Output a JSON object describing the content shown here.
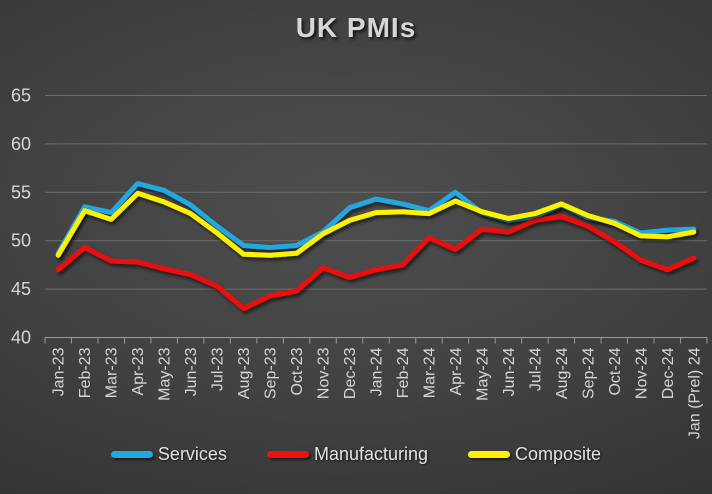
{
  "title": "UK PMIs",
  "axes": {
    "y_min": 40,
    "y_max": 65,
    "y_step": 5,
    "y_tick_labels": [
      "40",
      "45",
      "50",
      "55",
      "60",
      "65"
    ]
  },
  "colors": {
    "services": "#23A7DF",
    "manufacturing": "#EE1111",
    "composite": "#FFF200",
    "gridline": "#6C6C6C",
    "axis": "#9B9B9B",
    "label_text": "#D6D6D6"
  },
  "chart_data": {
    "type": "line",
    "title": "UK PMIs",
    "xlabel": "",
    "ylabel": "",
    "ylim": [
      40,
      65
    ],
    "ytick_step": 5,
    "grid": true,
    "legend_position": "bottom",
    "categories": [
      "Jan-23",
      "Feb-23",
      "Mar-23",
      "Apr-23",
      "May-23",
      "Jun-23",
      "Jul-23",
      "Aug-23",
      "Sep-23",
      "Oct-23",
      "Nov-23",
      "Dec-23",
      "Jan-24",
      "Feb-24",
      "Mar-24",
      "Apr-24",
      "May-24",
      "Jun-24",
      "Jul-24",
      "Aug-24",
      "Sep-24",
      "Oct-24",
      "Nov-24",
      "Dec-24",
      "Jan (Prel) 24"
    ],
    "series": [
      {
        "name": "Services",
        "color": "#23A7DF",
        "values": [
          48.7,
          53.5,
          52.9,
          55.9,
          55.2,
          53.7,
          51.5,
          49.5,
          49.3,
          49.5,
          50.9,
          53.4,
          54.3,
          53.8,
          53.1,
          55.0,
          52.9,
          52.1,
          52.5,
          53.7,
          52.4,
          52.0,
          50.8,
          51.1,
          51.2
        ]
      },
      {
        "name": "Manufacturing",
        "color": "#EE1111",
        "values": [
          47.0,
          49.3,
          47.9,
          47.8,
          47.1,
          46.5,
          45.3,
          43.0,
          44.3,
          44.8,
          47.2,
          46.2,
          47.0,
          47.5,
          50.3,
          49.1,
          51.2,
          50.9,
          52.1,
          52.5,
          51.5,
          49.9,
          48.0,
          47.0,
          48.2
        ]
      },
      {
        "name": "Composite",
        "color": "#FFF200",
        "values": [
          48.5,
          53.1,
          52.2,
          54.9,
          54.0,
          52.8,
          50.8,
          48.6,
          48.5,
          48.7,
          50.7,
          52.1,
          52.9,
          53.0,
          52.8,
          54.1,
          53.0,
          52.3,
          52.8,
          53.8,
          52.6,
          51.8,
          50.5,
          50.4,
          50.9
        ]
      }
    ]
  }
}
